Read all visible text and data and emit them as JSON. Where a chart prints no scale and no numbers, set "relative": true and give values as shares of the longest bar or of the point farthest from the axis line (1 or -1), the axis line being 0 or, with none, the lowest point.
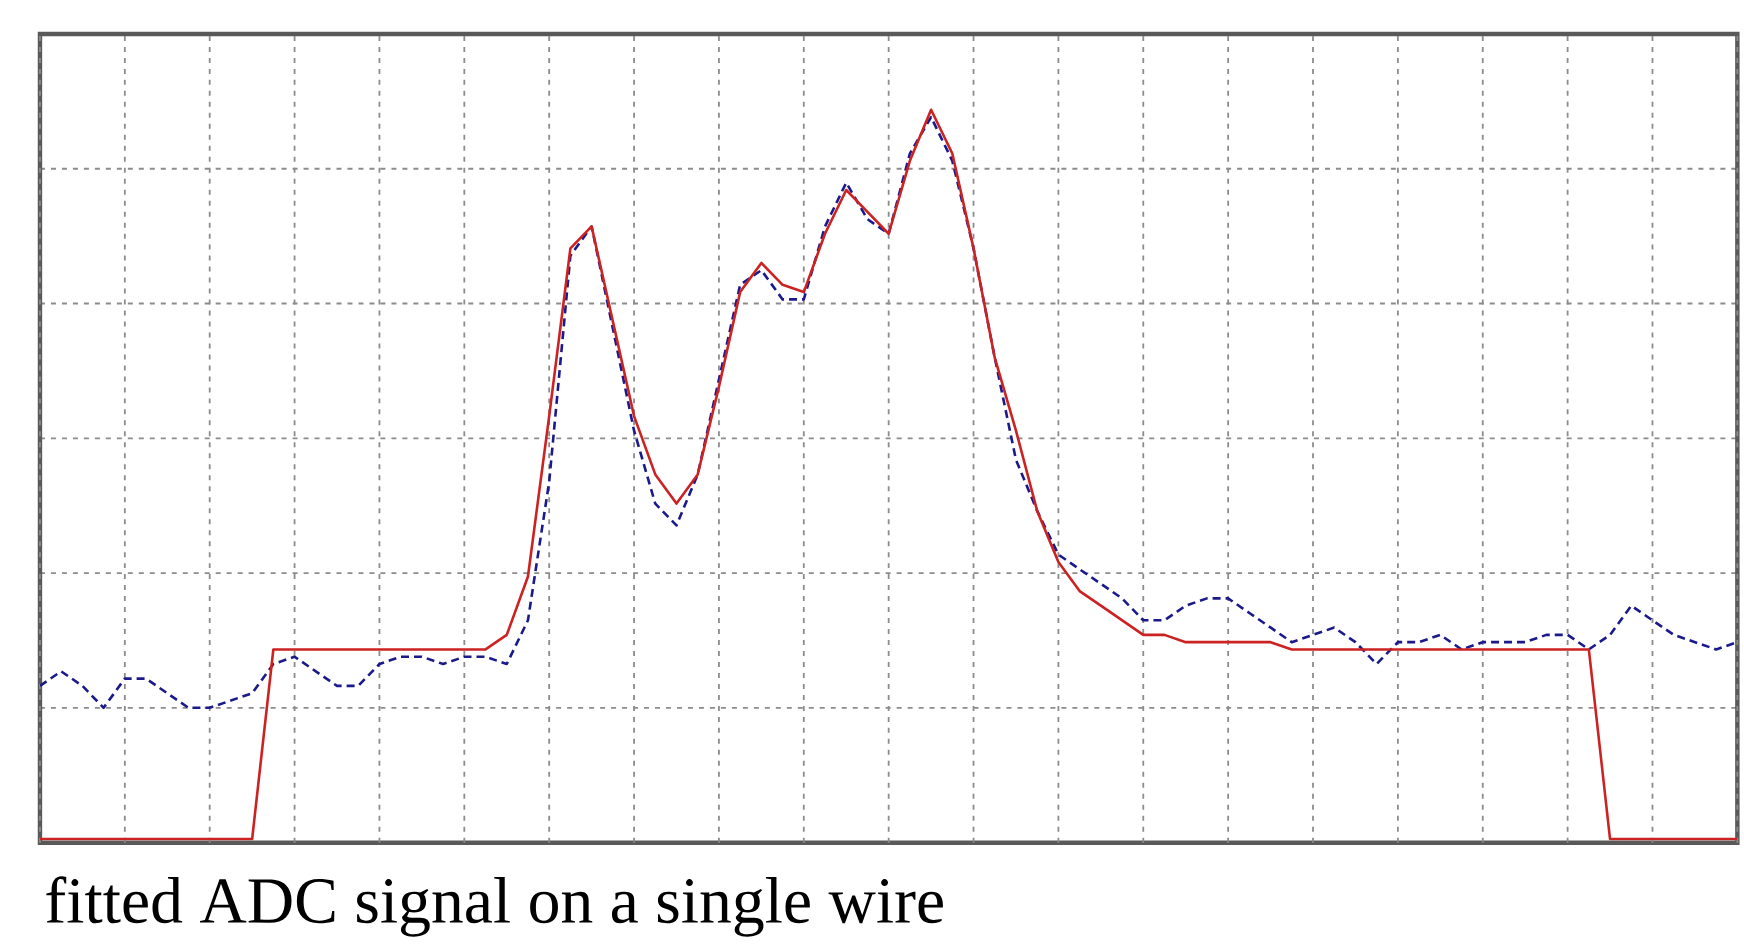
{
  "chart_data": {
    "type": "line",
    "relative": true,
    "grid": true,
    "categories": [
      null,
      null,
      null,
      null,
      null,
      null,
      null,
      null,
      null,
      null,
      null,
      null,
      null,
      null,
      null,
      null,
      null,
      null,
      null,
      null,
      null,
      null,
      null,
      null,
      null,
      null,
      null,
      null,
      null,
      null,
      null,
      null,
      null,
      null,
      null,
      null,
      null,
      null,
      null,
      null,
      null,
      null,
      null,
      null,
      null,
      null,
      null,
      null,
      null,
      null,
      null,
      null,
      null,
      null,
      null,
      null,
      null,
      null,
      null,
      null,
      null,
      null,
      null,
      null,
      null,
      null,
      null,
      null,
      null,
      null,
      null,
      null,
      null,
      null,
      null,
      null,
      null,
      null,
      null,
      null,
      null
    ],
    "annotations": [
      "fitted ADC signal on a single wire"
    ],
    "series": [
      {
        "color": "#1a1a8c",
        "line_style": "dashed",
        "values": [
          0.21,
          0.23,
          0.21,
          0.18,
          0.22,
          0.22,
          0.2,
          0.18,
          0.18,
          0.19,
          0.2,
          0.24,
          0.25,
          0.23,
          0.21,
          0.21,
          0.24,
          0.25,
          0.25,
          0.24,
          0.25,
          0.25,
          0.24,
          0.3,
          0.49,
          0.8,
          0.84,
          0.7,
          0.56,
          0.46,
          0.43,
          0.5,
          0.63,
          0.76,
          0.78,
          0.74,
          0.74,
          0.84,
          0.9,
          0.85,
          0.83,
          0.94,
          0.99,
          0.93,
          0.81,
          0.66,
          0.52,
          0.45,
          0.39,
          0.37,
          0.35,
          0.33,
          0.3,
          0.3,
          0.32,
          0.33,
          0.33,
          0.31,
          0.29,
          0.27,
          0.28,
          0.29,
          0.27,
          0.24,
          0.27,
          0.27,
          0.28,
          0.26,
          0.27,
          0.27,
          0.27,
          0.28,
          0.28,
          0.26,
          0.28,
          0.32,
          0.3,
          0.28,
          0.27,
          0.26,
          0.27
        ]
      },
      {
        "color": "#cc2222",
        "line_style": "solid",
        "values": [
          0,
          0,
          0,
          0,
          0,
          0,
          0,
          0,
          0,
          0,
          0,
          0.26,
          0.26,
          0.26,
          0.26,
          0.26,
          0.26,
          0.26,
          0.26,
          0.26,
          0.26,
          0.26,
          0.28,
          0.36,
          0.58,
          0.81,
          0.84,
          0.71,
          0.58,
          0.5,
          0.46,
          0.5,
          0.62,
          0.75,
          0.79,
          0.76,
          0.75,
          0.83,
          0.89,
          0.86,
          0.83,
          0.93,
          1,
          0.94,
          0.81,
          0.66,
          0.56,
          0.45,
          0.38,
          0.34,
          0.32,
          0.3,
          0.28,
          0.28,
          0.27,
          0.27,
          0.27,
          0.27,
          0.27,
          0.26,
          0.26,
          0.26,
          0.26,
          0.26,
          0.26,
          0.26,
          0.26,
          0.26,
          0.26,
          0.26,
          0.26,
          0.26,
          0.26,
          0.26,
          0,
          0,
          0,
          0,
          0,
          0,
          0
        ]
      }
    ]
  }
}
